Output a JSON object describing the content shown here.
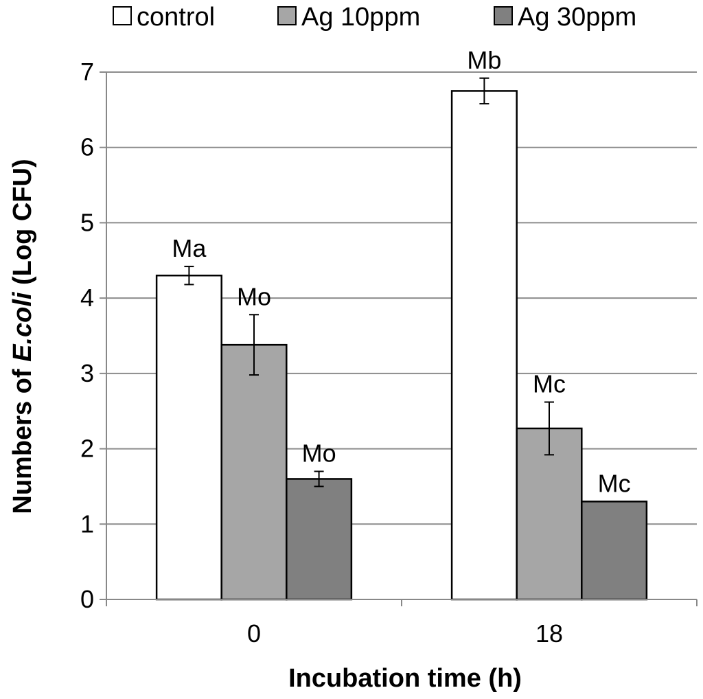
{
  "chart_data": {
    "type": "bar",
    "title": "",
    "xlabel": "Incubation time (h)",
    "ylabel": {
      "prefix": "Numbers of ",
      "organism": "E.coli",
      "suffix": " (Log CFU)"
    },
    "categories": [
      "0",
      "18"
    ],
    "ylim": [
      0,
      7
    ],
    "yticks": [
      "0",
      "1",
      "2",
      "3",
      "4",
      "5",
      "6",
      "7"
    ],
    "grid": true,
    "legend_position": "top",
    "series": [
      {
        "name": "control",
        "color": "#ffffff",
        "values": [
          4.3,
          6.75
        ],
        "errors": [
          0.12,
          0.17
        ],
        "labels": [
          "Ma",
          "Mb"
        ]
      },
      {
        "name": "Ag 10ppm",
        "color": "#a6a6a6",
        "values": [
          3.38,
          2.27
        ],
        "errors": [
          0.4,
          0.35
        ],
        "labels": [
          "Mo",
          "Mc"
        ]
      },
      {
        "name": "Ag 30ppm",
        "color": "#808080",
        "values": [
          1.6,
          1.3
        ],
        "errors": [
          0.1,
          0
        ],
        "labels": [
          "Mo",
          "Mc"
        ]
      }
    ]
  }
}
